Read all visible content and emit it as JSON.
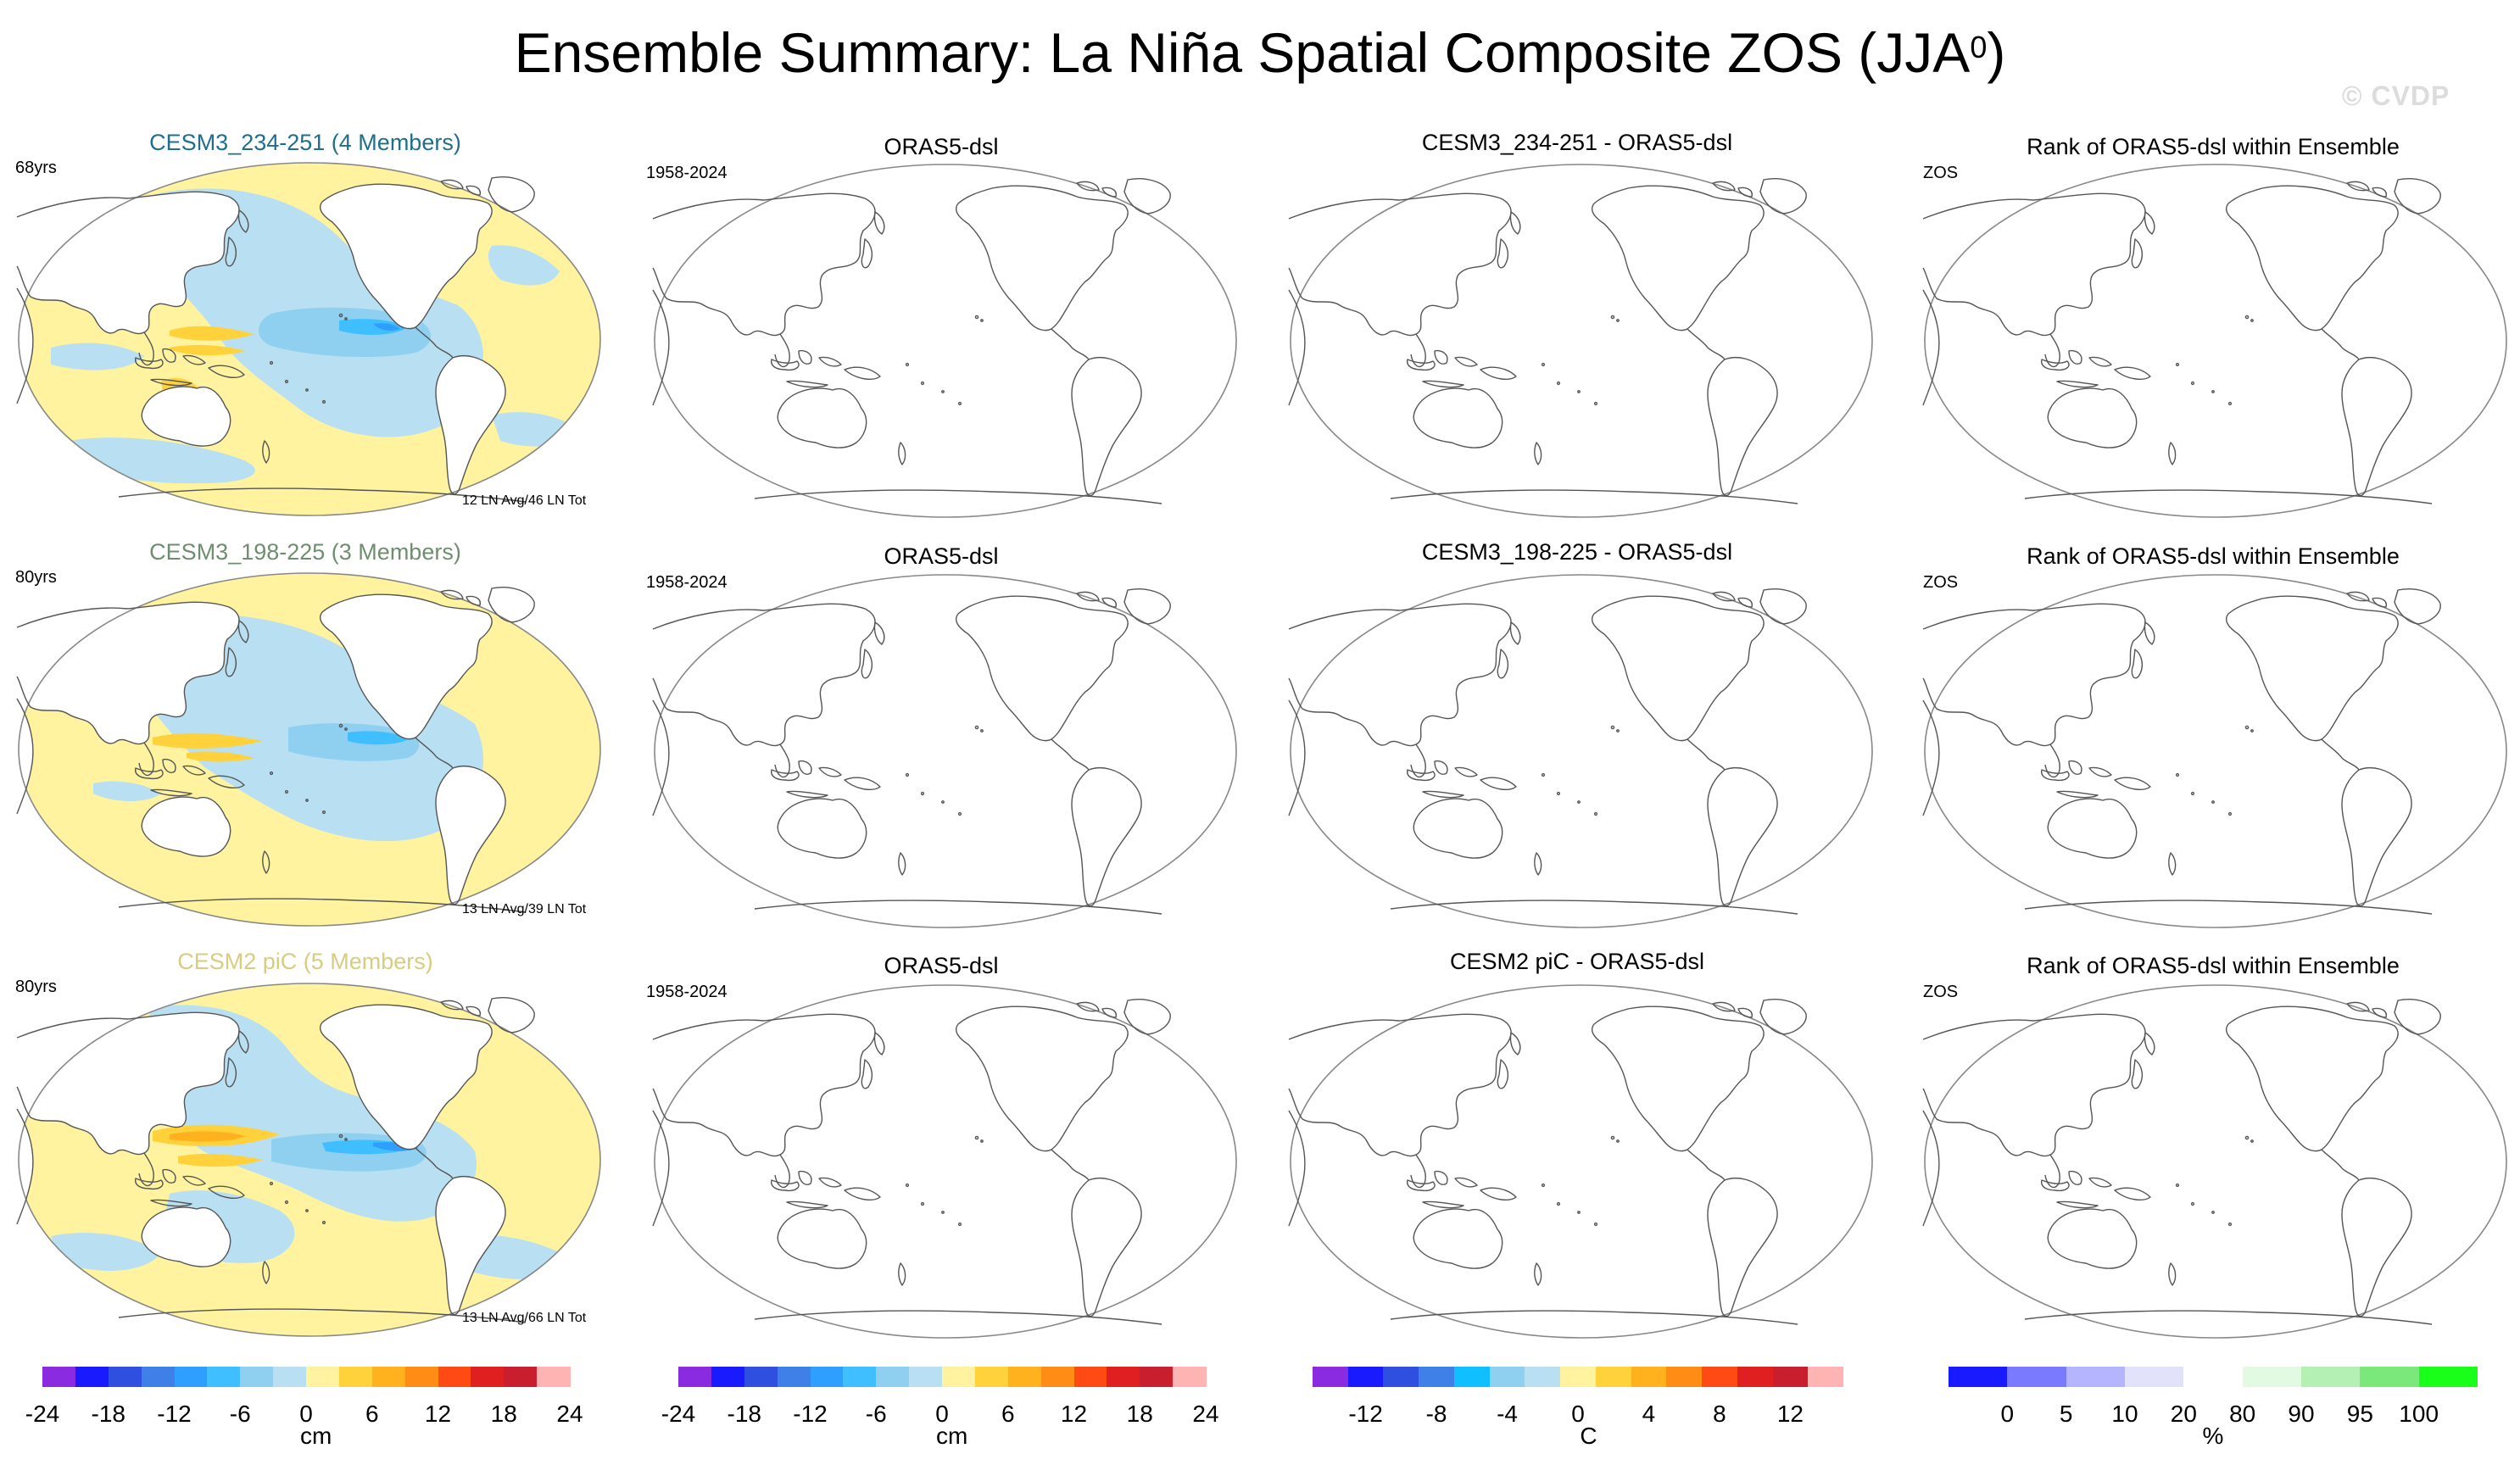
{
  "figure": {
    "title_main": "Ensemble Summary: La Niña Spatial Composite ZOS (JJA",
    "title_sup": "0",
    "title_close": ")",
    "watermark": "© CVDP"
  },
  "chart_data": {
    "type": "map-panel-grid",
    "rows": [
      {
        "model_title": "CESM3_234-251 (4 Members)",
        "model_title_color": "#1f6f8b",
        "years": "68yrs",
        "footnote": "12 LN Avg/46 LN Tot",
        "obs_title": "ORAS5-dsl",
        "obs_years": "1958-2024",
        "diff_title": "CESM3_234-251 - ORAS5-dsl",
        "rank_title": "Rank of ORAS5-dsl within Ensemble",
        "rank_var": "ZOS"
      },
      {
        "model_title": "CESM3_198-225 (3 Members)",
        "model_title_color": "#6e8f6e",
        "years": "80yrs",
        "footnote": "13 LN Avg/39 LN Tot",
        "obs_title": "ORAS5-dsl",
        "obs_years": "1958-2024",
        "diff_title": "CESM3_198-225 - ORAS5-dsl",
        "rank_title": "Rank of ORAS5-dsl within Ensemble",
        "rank_var": "ZOS"
      },
      {
        "model_title": "CESM2 piC (5 Members)",
        "model_title_color": "#d8cc80",
        "years": "80yrs",
        "footnote": "13 LN Avg/66 LN Tot",
        "obs_title": "ORAS5-dsl",
        "obs_years": "1958-2024",
        "diff_title": "CESM2 piC - ORAS5-dsl",
        "rank_title": "Rank of ORAS5-dsl within Ensemble",
        "rank_var": "ZOS"
      }
    ],
    "colorbars": [
      {
        "name": "model",
        "unit": "cm",
        "ticks": [
          "-24",
          "-18",
          "-12",
          "-6",
          "0",
          "6",
          "12",
          "18",
          "24"
        ],
        "colors": [
          "#8a2be2",
          "#1a1aff",
          "#2f4fe0",
          "#3f7fe8",
          "#2f9fff",
          "#3fbfff",
          "#8fcfef",
          "#b8e0f2",
          "#fff3a0",
          "#ffd23c",
          "#ffb21e",
          "#ff8c14",
          "#ff4a14",
          "#e02020",
          "#c81e2e",
          "#ffb4b4"
        ]
      },
      {
        "name": "obs",
        "unit": "cm",
        "ticks": [
          "-24",
          "-18",
          "-12",
          "-6",
          "0",
          "6",
          "12",
          "18",
          "24"
        ],
        "colors": [
          "#8a2be2",
          "#1a1aff",
          "#2f4fe0",
          "#3f7fe8",
          "#2f9fff",
          "#3fbfff",
          "#8fcfef",
          "#b8e0f2",
          "#fff3a0",
          "#ffd23c",
          "#ffb21e",
          "#ff8c14",
          "#ff4a14",
          "#e02020",
          "#c81e2e",
          "#ffb4b4"
        ]
      },
      {
        "name": "diff",
        "unit": "C",
        "ticks": [
          "-12",
          "-8",
          "-4",
          "0",
          "4",
          "8",
          "12"
        ],
        "colors": [
          "#8a2be2",
          "#1a1aff",
          "#2f4fe0",
          "#3f7fe8",
          "#0fbfff",
          "#8fcfef",
          "#b8e0f2",
          "#fff3a0",
          "#ffd23c",
          "#ffb21e",
          "#ff8c14",
          "#ff4a14",
          "#e02020",
          "#c81e2e",
          "#ffb4b4"
        ]
      },
      {
        "name": "rank",
        "unit": "%",
        "ticks": [
          "0",
          "5",
          "10",
          "20",
          "80",
          "90",
          "95",
          "100"
        ],
        "tick_values": [
          0,
          5,
          10,
          20,
          80,
          90,
          95,
          100
        ],
        "colors": [
          "#1a1aff",
          "#7a7aff",
          "#b4b4ff",
          "#e2e2fa",
          "#ffffff",
          "#e2fae2",
          "#b4f0b4",
          "#7ae87a",
          "#1aff1a"
        ]
      }
    ]
  }
}
